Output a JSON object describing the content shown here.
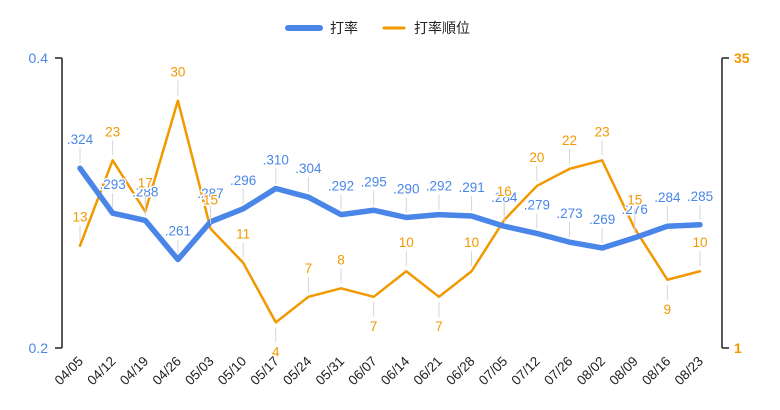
{
  "chart_data": {
    "type": "line",
    "categories": [
      "04/05",
      "04/12",
      "04/19",
      "04/26",
      "05/03",
      "05/10",
      "05/17",
      "05/24",
      "05/31",
      "06/07",
      "06/14",
      "06/21",
      "06/28",
      "07/05",
      "07/12",
      "07/26",
      "08/02",
      "08/09",
      "08/16",
      "08/23"
    ],
    "series": [
      {
        "name": "打率",
        "axis": "left",
        "color": "#4a86e8",
        "values": [
          0.324,
          0.293,
          0.288,
          0.261,
          0.287,
          0.296,
          0.31,
          0.304,
          0.292,
          0.295,
          0.29,
          0.292,
          0.291,
          0.284,
          0.279,
          0.273,
          0.269,
          0.276,
          0.284,
          0.285
        ],
        "labels": [
          ".324",
          ".293",
          ".288",
          ".261",
          ".287",
          ".296",
          ".310",
          ".304",
          ".292",
          ".295",
          ".290",
          ".292",
          ".291",
          ".284",
          ".279",
          ".273",
          ".269",
          ".276",
          ".284",
          ".285"
        ]
      },
      {
        "name": "打率順位",
        "axis": "right",
        "color": "#f29900",
        "values": [
          13,
          23,
          17,
          30,
          15,
          11,
          4,
          7,
          8,
          7,
          10,
          7,
          10,
          16,
          20,
          22,
          23,
          15,
          9,
          10
        ],
        "labels": [
          "13",
          "23",
          "17",
          "30",
          "15",
          "11",
          "4",
          "7",
          "8",
          "7",
          "10",
          "7",
          "10",
          "16",
          "20",
          "22",
          "23",
          "15",
          "9",
          "10"
        ]
      }
    ],
    "left_axis": {
      "min": 0.2,
      "max": 0.4,
      "tick_labels": [
        "0.2",
        "0.4"
      ]
    },
    "right_axis": {
      "min": 1,
      "max": 35,
      "tick_labels": [
        "1",
        "35"
      ]
    },
    "legend_position": "top-center",
    "grid": false
  }
}
